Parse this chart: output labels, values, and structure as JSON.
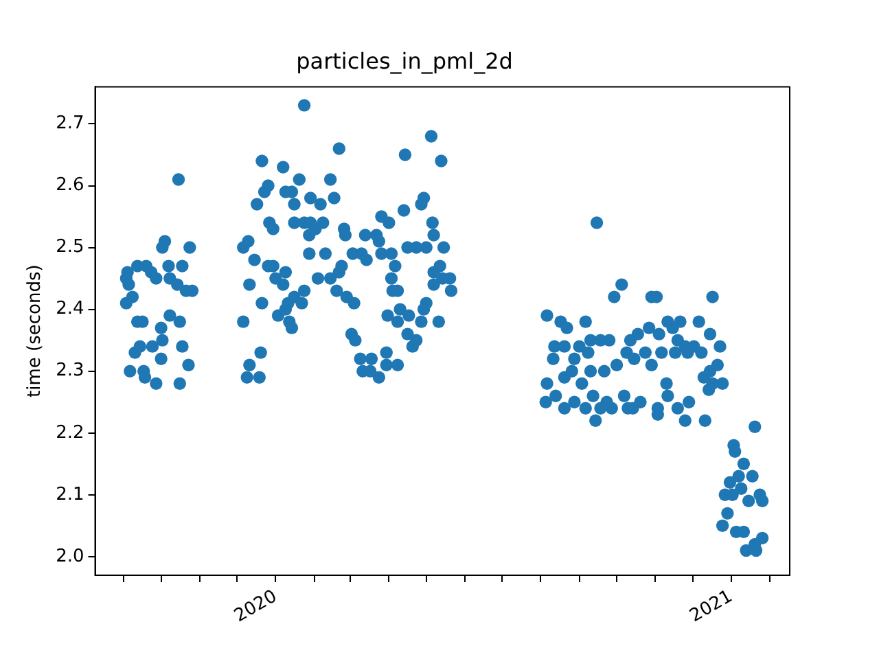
{
  "chart_data": {
    "type": "scatter",
    "title": "particles_in_pml_2d",
    "ylabel": "time (seconds)",
    "color": "#1f77b4",
    "marker": "circle",
    "xlim": [
      "2019-08-09",
      "2021-02-17"
    ],
    "ylim": [
      1.97,
      2.76
    ],
    "xticks": [
      {
        "value": "2019-09",
        "label": null
      },
      {
        "value": "2019-10",
        "label": null
      },
      {
        "value": "2019-11",
        "label": null
      },
      {
        "value": "2019-12",
        "label": null
      },
      "2020",
      {
        "value": "2020-02",
        "label": null
      },
      {
        "value": "2020-03",
        "label": null
      },
      {
        "value": "2020-04",
        "label": null
      },
      {
        "value": "2020-05",
        "label": null
      },
      {
        "value": "2020-06",
        "label": null
      },
      {
        "value": "2020-07",
        "label": null
      },
      {
        "value": "2020-08",
        "label": null
      },
      {
        "value": "2020-09",
        "label": null
      },
      {
        "value": "2020-10",
        "label": null
      },
      {
        "value": "2020-11",
        "label": null
      },
      {
        "value": "2020-12",
        "label": null
      },
      "2021",
      {
        "value": "2021-02",
        "label": null
      }
    ],
    "yticks": [
      {
        "value": 2,
        "label": "2.0"
      },
      2.1,
      2.2,
      2.3,
      2.4,
      2.5,
      2.6,
      2.7
    ],
    "x": [
      "2019-09-03",
      "2019-09-04",
      "2019-09-05",
      "2019-09-08",
      "2019-09-03",
      "2019-09-06",
      "2019-09-10",
      "2019-09-12",
      "2019-09-12",
      "2019-09-14",
      "2019-09-16",
      "2019-09-17",
      "2019-09-18",
      "2019-09-19",
      "2019-09-23",
      "2019-09-24",
      "2019-09-27",
      "2019-09-27",
      "2019-10-01",
      "2019-10-01",
      "2019-10-02",
      "2019-10-02",
      "2019-10-04",
      "2019-10-07",
      "2019-10-08",
      "2019-10-08",
      "2019-10-14",
      "2019-10-15",
      "2019-10-16",
      "2019-10-16",
      "2019-10-18",
      "2019-10-18",
      "2019-10-21",
      "2019-10-23",
      "2019-10-24",
      "2019-10-26",
      "2019-12-06",
      "2019-12-06",
      "2019-12-09",
      "2019-12-10",
      "2019-12-11",
      "2019-12-11",
      "2019-12-15",
      "2019-12-17",
      "2019-12-19",
      "2019-12-20",
      "2019-12-21",
      "2019-12-21",
      "2019-12-23",
      "2019-12-26",
      "2019-12-26",
      "2019-12-27",
      "2019-12-30",
      "2019-12-30",
      "2020-01-01",
      "2020-01-03",
      "2020-01-07",
      "2020-01-07",
      "2020-01-09",
      "2020-01-09",
      "2020-01-09",
      "2020-01-11",
      "2020-01-12",
      "2020-01-14",
      "2020-01-14",
      "2020-01-16",
      "2020-01-16",
      "2020-01-16",
      "2020-01-20",
      "2020-01-22",
      "2020-01-24",
      "2020-01-24",
      "2020-01-24",
      "2020-01-28",
      "2020-01-28",
      "2020-01-29",
      "2020-01-29",
      "2020-02-02",
      "2020-02-04",
      "2020-02-06",
      "2020-02-08",
      "2020-02-10",
      "2020-02-14",
      "2020-02-14",
      "2020-02-17",
      "2020-02-19",
      "2020-02-21",
      "2020-02-21",
      "2020-02-23",
      "2020-02-25",
      "2020-02-26",
      "2020-02-27",
      "2020-03-02",
      "2020-03-03",
      "2020-03-04",
      "2020-03-05",
      "2020-03-09",
      "2020-03-10",
      "2020-03-11",
      "2020-03-13",
      "2020-03-14",
      "2020-03-17",
      "2020-03-18",
      "2020-03-22",
      "2020-03-24",
      "2020-03-24",
      "2020-03-26",
      "2020-03-26",
      "2020-03-30",
      "2020-03-30",
      "2020-03-31",
      "2020-04-01",
      "2020-04-03",
      "2020-04-03",
      "2020-04-04",
      "2020-04-06",
      "2020-04-08",
      "2020-04-08",
      "2020-04-08",
      "2020-04-10",
      "2020-04-13",
      "2020-04-14",
      "2020-04-16",
      "2020-04-16",
      "2020-04-17",
      "2020-04-20",
      "2020-04-23",
      "2020-04-23",
      "2020-04-27",
      "2020-04-27",
      "2020-04-29",
      "2020-04-29",
      "2020-05-01",
      "2020-05-01",
      "2020-05-05",
      "2020-05-06",
      "2020-05-07",
      "2020-05-07",
      "2020-05-07",
      "2020-05-11",
      "2020-05-12",
      "2020-05-13",
      "2020-05-14",
      "2020-05-15",
      "2020-05-20",
      "2020-05-21",
      "2020-08-05",
      "2020-08-06",
      "2020-08-06",
      "2020-08-11",
      "2020-08-12",
      "2020-08-13",
      "2020-08-17",
      "2020-08-20",
      "2020-08-20",
      "2020-08-20",
      "2020-08-22",
      "2020-08-26",
      "2020-08-28",
      "2020-08-28",
      "2020-09-01",
      "2020-09-03",
      "2020-09-06",
      "2020-09-06",
      "2020-09-08",
      "2020-09-10",
      "2020-09-10",
      "2020-09-12",
      "2020-09-14",
      "2020-09-15",
      "2020-09-18",
      "2020-09-18",
      "2020-09-21",
      "2020-09-23",
      "2020-09-25",
      "2020-09-27",
      "2020-09-29",
      "2020-10-01",
      "2020-10-05",
      "2020-10-07",
      "2020-10-09",
      "2020-10-10",
      "2020-10-12",
      "2020-10-14",
      "2020-10-15",
      "2020-10-18",
      "2020-10-20",
      "2020-10-24",
      "2020-10-27",
      "2020-10-29",
      "2020-10-29",
      "2020-11-02",
      "2020-11-03",
      "2020-11-03",
      "2020-11-04",
      "2020-11-06",
      "2020-11-10",
      "2020-11-11",
      "2020-11-11",
      "2020-11-15",
      "2020-11-17",
      "2020-11-19",
      "2020-11-19",
      "2020-11-21",
      "2020-11-25",
      "2020-11-25",
      "2020-11-27",
      "2020-11-28",
      "2020-12-02",
      "2020-12-06",
      "2020-12-08",
      "2020-12-10",
      "2020-12-11",
      "2020-12-14",
      "2020-12-15",
      "2020-12-15",
      "2020-12-17",
      "2020-12-17",
      "2020-12-21",
      "2020-12-23",
      "2020-12-25",
      "2020-12-25",
      "2020-12-27",
      "2020-12-29",
      "2020-12-31",
      "2021-01-02",
      "2021-01-03",
      "2021-01-04",
      "2021-01-05",
      "2021-01-07",
      "2021-01-09",
      "2021-01-11",
      "2021-01-11",
      "2021-01-13",
      "2021-01-15",
      "2021-01-18",
      "2021-01-20",
      "2021-01-20",
      "2021-01-21",
      "2021-01-24",
      "2021-01-26",
      "2021-01-26"
    ],
    "values": [
      2.45,
      2.46,
      2.44,
      2.42,
      2.41,
      2.3,
      2.33,
      2.47,
      2.38,
      2.34,
      2.38,
      2.3,
      2.29,
      2.47,
      2.46,
      2.34,
      2.45,
      2.28,
      2.37,
      2.32,
      2.5,
      2.35,
      2.51,
      2.47,
      2.45,
      2.39,
      2.44,
      2.61,
      2.38,
      2.28,
      2.47,
      2.34,
      2.43,
      2.31,
      2.5,
      2.43,
      2.5,
      2.38,
      2.29,
      2.51,
      2.44,
      2.31,
      2.48,
      2.57,
      2.29,
      2.33,
      2.64,
      2.41,
      2.59,
      2.6,
      2.47,
      2.54,
      2.53,
      2.47,
      2.45,
      2.39,
      2.63,
      2.44,
      2.59,
      2.46,
      2.4,
      2.41,
      2.38,
      2.59,
      2.37,
      2.57,
      2.54,
      2.42,
      2.61,
      2.41,
      2.73,
      2.54,
      2.43,
      2.52,
      2.49,
      2.58,
      2.54,
      2.53,
      2.45,
      2.57,
      2.54,
      2.49,
      2.45,
      2.61,
      2.58,
      2.43,
      2.66,
      2.46,
      2.47,
      2.53,
      2.52,
      2.42,
      2.36,
      2.49,
      2.41,
      2.35,
      2.32,
      2.49,
      2.3,
      2.52,
      2.48,
      2.3,
      2.32,
      2.52,
      2.51,
      2.29,
      2.55,
      2.49,
      2.33,
      2.31,
      2.39,
      2.54,
      2.49,
      2.45,
      2.43,
      2.47,
      2.43,
      2.38,
      2.31,
      2.4,
      2.56,
      2.65,
      2.5,
      2.36,
      2.39,
      2.34,
      2.5,
      2.35,
      2.57,
      2.38,
      2.58,
      2.4,
      2.5,
      2.41,
      2.68,
      2.54,
      2.46,
      2.44,
      2.52,
      2.38,
      2.47,
      2.64,
      2.45,
      2.5,
      2.45,
      2.43,
      2.25,
      2.39,
      2.28,
      2.32,
      2.34,
      2.26,
      2.38,
      2.34,
      2.29,
      2.24,
      2.37,
      2.3,
      2.32,
      2.25,
      2.34,
      2.28,
      2.38,
      2.24,
      2.33,
      2.35,
      2.3,
      2.26,
      2.22,
      2.54,
      2.35,
      2.24,
      2.3,
      2.25,
      2.35,
      2.24,
      2.42,
      2.31,
      2.44,
      2.26,
      2.33,
      2.24,
      2.35,
      2.24,
      2.32,
      2.36,
      2.25,
      2.33,
      2.37,
      2.42,
      2.31,
      2.42,
      2.24,
      2.23,
      2.36,
      2.33,
      2.28,
      2.38,
      2.26,
      2.37,
      2.33,
      2.35,
      2.24,
      2.38,
      2.34,
      2.22,
      2.33,
      2.25,
      2.34,
      2.38,
      2.33,
      2.29,
      2.22,
      2.27,
      2.36,
      2.3,
      2.42,
      2.28,
      2.31,
      2.34,
      2.28,
      2.05,
      2.1,
      2.07,
      2.12,
      2.1,
      2.18,
      2.17,
      2.04,
      2.13,
      2.11,
      2.15,
      2.04,
      2.01,
      2.09,
      2.13,
      2.21,
      2.02,
      2.01,
      2.1,
      2.03,
      2.09
    ]
  }
}
